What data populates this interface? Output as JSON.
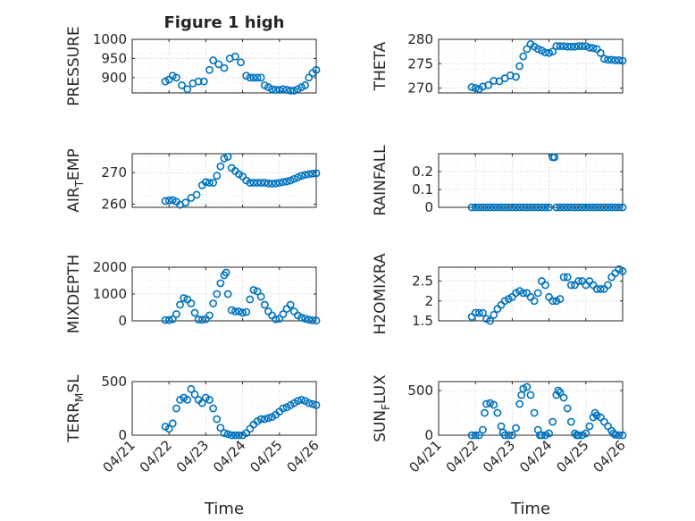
{
  "figure_title": "Figure 1 high",
  "x_label": "Time",
  "x_tick_labels": [
    "04/21",
    "04/22",
    "04/23",
    "04/24",
    "04/25",
    "04/26"
  ],
  "marker_color": "#0072bd",
  "chart_data": [
    {
      "type": "scatter",
      "title": "Figure 1 high",
      "ylabel": "PRESSURE",
      "ylim": [
        860,
        1000
      ],
      "yticks": [
        900,
        950,
        1000
      ],
      "grid": true,
      "x_unit": "day (0 = 04/21 00:00)",
      "series": [
        {
          "x": [
            0.9,
            1.0,
            1.1,
            1.2,
            1.35,
            1.5,
            1.65,
            1.8,
            1.95,
            2.1,
            2.2,
            2.35,
            2.5,
            2.65,
            2.8,
            2.95,
            3.1,
            3.2,
            3.3,
            3.4,
            3.5,
            3.6,
            3.7,
            3.8,
            3.9,
            4.0,
            4.1,
            4.2,
            4.3,
            4.4,
            4.5,
            4.6,
            4.7,
            4.8,
            4.9,
            5.0
          ],
          "y": [
            890,
            895,
            905,
            900,
            880,
            870,
            885,
            890,
            890,
            920,
            945,
            935,
            925,
            950,
            955,
            940,
            905,
            900,
            900,
            900,
            900,
            880,
            875,
            870,
            868,
            868,
            870,
            868,
            866,
            866,
            870,
            875,
            880,
            900,
            912,
            920
          ]
        }
      ]
    },
    {
      "type": "scatter",
      "ylabel": "THETA",
      "ylim": [
        269,
        280
      ],
      "yticks": [
        270,
        275,
        280
      ],
      "grid": true,
      "series": [
        {
          "x": [
            0.9,
            1.0,
            1.1,
            1.2,
            1.35,
            1.5,
            1.65,
            1.8,
            1.95,
            2.1,
            2.2,
            2.3,
            2.4,
            2.5,
            2.6,
            2.7,
            2.8,
            2.9,
            3.0,
            3.1,
            3.2,
            3.3,
            3.4,
            3.5,
            3.6,
            3.7,
            3.8,
            3.9,
            4.0,
            4.1,
            4.2,
            4.3,
            4.4,
            4.5,
            4.6,
            4.7,
            4.8,
            4.9,
            5.0
          ],
          "y": [
            270.2,
            270.0,
            269.8,
            270.3,
            270.6,
            271.5,
            271.4,
            272.0,
            272.6,
            272.3,
            274.5,
            276.5,
            278.0,
            279.0,
            278.5,
            278.0,
            277.7,
            277.3,
            277.2,
            277.5,
            278.6,
            278.6,
            278.6,
            278.5,
            278.5,
            278.5,
            278.6,
            278.6,
            278.6,
            278.3,
            278.2,
            278.0,
            277.2,
            276.0,
            275.8,
            275.8,
            275.7,
            275.7,
            275.6
          ]
        }
      ]
    },
    {
      "type": "scatter",
      "ylabel": "AIR_TEMP",
      "ylabel_main": "AIR",
      "ylabel_sub": "T",
      "ylabel_tail": "EMP",
      "ylim": [
        259,
        276
      ],
      "yticks": [
        260,
        270
      ],
      "grid": true,
      "series": [
        {
          "x": [
            0.9,
            1.0,
            1.1,
            1.2,
            1.3,
            1.45,
            1.6,
            1.75,
            1.9,
            2.0,
            2.1,
            2.2,
            2.3,
            2.4,
            2.5,
            2.6,
            2.7,
            2.8,
            2.9,
            3.0,
            3.1,
            3.2,
            3.3,
            3.4,
            3.5,
            3.6,
            3.7,
            3.8,
            3.9,
            4.0,
            4.1,
            4.2,
            4.3,
            4.4,
            4.5,
            4.6,
            4.7,
            4.8,
            4.9,
            5.0
          ],
          "y": [
            261.0,
            261.2,
            261.3,
            260.8,
            259.8,
            260.5,
            262.0,
            263.0,
            266.0,
            267.0,
            266.8,
            266.8,
            269.0,
            272.0,
            274.5,
            275.0,
            271.5,
            270.5,
            269.5,
            268.8,
            267.5,
            266.8,
            266.8,
            266.8,
            266.8,
            266.8,
            266.6,
            266.5,
            266.6,
            266.8,
            267.0,
            267.2,
            267.5,
            268.0,
            268.5,
            269.0,
            269.3,
            269.5,
            269.7,
            269.8
          ]
        }
      ]
    },
    {
      "type": "scatter",
      "ylabel": "RAINFALL",
      "ylim": [
        0,
        0.3
      ],
      "yticks": [
        0,
        0.1,
        0.2
      ],
      "grid": true,
      "series": [
        {
          "x": [
            0.9,
            1.0,
            1.1,
            1.2,
            1.3,
            1.4,
            1.5,
            1.6,
            1.7,
            1.8,
            1.9,
            2.0,
            2.1,
            2.2,
            2.3,
            2.4,
            2.5,
            2.6,
            2.7,
            2.8,
            2.9,
            3.0,
            3.1,
            3.15,
            3.2,
            3.3,
            3.4,
            3.5,
            3.6,
            3.7,
            3.8,
            3.9,
            4.0,
            4.1,
            4.2,
            4.3,
            4.4,
            4.5,
            4.6,
            4.7,
            4.8,
            4.9,
            5.0
          ],
          "y": [
            0,
            0,
            0,
            0,
            0,
            0,
            0,
            0,
            0,
            0,
            0,
            0,
            0,
            0,
            0,
            0,
            0,
            0,
            0,
            0,
            0,
            0,
            0.28,
            0.28,
            0,
            0,
            0,
            0,
            0,
            0,
            0,
            0,
            0,
            0,
            0,
            0,
            0,
            0,
            0,
            0,
            0,
            0,
            0
          ]
        }
      ]
    },
    {
      "type": "scatter",
      "ylabel": "MIXDEPTH",
      "ylim": [
        0,
        2000
      ],
      "yticks": [
        0,
        1000,
        2000
      ],
      "grid": true,
      "series": [
        {
          "x": [
            0.9,
            1.0,
            1.1,
            1.2,
            1.3,
            1.4,
            1.5,
            1.6,
            1.7,
            1.8,
            1.9,
            2.0,
            2.1,
            2.2,
            2.3,
            2.4,
            2.5,
            2.55,
            2.6,
            2.7,
            2.8,
            2.9,
            3.0,
            3.1,
            3.2,
            3.3,
            3.4,
            3.5,
            3.6,
            3.7,
            3.8,
            3.9,
            4.0,
            4.1,
            4.2,
            4.3,
            4.4,
            4.5,
            4.6,
            4.7,
            4.8,
            4.9,
            5.0
          ],
          "y": [
            30,
            30,
            60,
            250,
            600,
            850,
            800,
            650,
            300,
            50,
            40,
            60,
            200,
            650,
            1000,
            1400,
            1700,
            1800,
            1000,
            400,
            350,
            350,
            300,
            330,
            800,
            1150,
            1100,
            900,
            600,
            350,
            200,
            60,
            80,
            250,
            450,
            600,
            350,
            200,
            120,
            80,
            40,
            20,
            10
          ]
        }
      ]
    },
    {
      "type": "scatter",
      "ylabel": "H2OMIXRA",
      "ylim": [
        1.5,
        2.85
      ],
      "yticks": [
        1.5,
        2,
        2.5
      ],
      "grid": true,
      "series": [
        {
          "x": [
            0.9,
            1.0,
            1.1,
            1.2,
            1.3,
            1.4,
            1.5,
            1.6,
            1.7,
            1.8,
            1.9,
            2.0,
            2.1,
            2.2,
            2.3,
            2.4,
            2.5,
            2.6,
            2.7,
            2.8,
            2.9,
            3.0,
            3.1,
            3.2,
            3.3,
            3.4,
            3.5,
            3.6,
            3.7,
            3.8,
            3.9,
            4.0,
            4.1,
            4.2,
            4.3,
            4.4,
            4.5,
            4.6,
            4.7,
            4.8,
            4.9,
            5.0
          ],
          "y": [
            1.6,
            1.7,
            1.7,
            1.7,
            1.55,
            1.5,
            1.65,
            1.8,
            1.9,
            2.0,
            2.05,
            2.1,
            2.2,
            2.25,
            2.2,
            2.2,
            2.1,
            2.0,
            2.2,
            2.5,
            2.4,
            2.1,
            2.0,
            2.0,
            2.05,
            2.6,
            2.6,
            2.4,
            2.4,
            2.5,
            2.5,
            2.4,
            2.5,
            2.4,
            2.3,
            2.3,
            2.3,
            2.4,
            2.6,
            2.7,
            2.8,
            2.75
          ]
        }
      ]
    },
    {
      "type": "scatter",
      "ylabel": "TERR_MSL",
      "ylabel_main": "TERR",
      "ylabel_sub": "M",
      "ylabel_tail": "SL",
      "ylim": [
        0,
        500
      ],
      "yticks": [
        0,
        500
      ],
      "grid": true,
      "series": [
        {
          "x": [
            0.9,
            1.0,
            1.1,
            1.2,
            1.3,
            1.4,
            1.5,
            1.6,
            1.7,
            1.8,
            1.9,
            2.0,
            2.1,
            2.2,
            2.3,
            2.4,
            2.5,
            2.6,
            2.7,
            2.8,
            2.9,
            3.0,
            3.1,
            3.2,
            3.3,
            3.4,
            3.5,
            3.6,
            3.7,
            3.8,
            3.9,
            4.0,
            4.1,
            4.2,
            4.3,
            4.4,
            4.5,
            4.6,
            4.7,
            4.8,
            4.9,
            5.0
          ],
          "y": [
            80,
            60,
            110,
            250,
            330,
            350,
            330,
            430,
            380,
            330,
            300,
            350,
            330,
            250,
            150,
            70,
            20,
            10,
            0,
            0,
            0,
            0,
            20,
            60,
            100,
            130,
            150,
            150,
            160,
            170,
            190,
            220,
            250,
            260,
            280,
            300,
            320,
            330,
            320,
            300,
            290,
            280
          ]
        }
      ]
    },
    {
      "type": "scatter",
      "ylabel": "SUN_FLUX",
      "ylabel_main": "SUN",
      "ylabel_sub": "F",
      "ylabel_tail": "LUX",
      "ylim": [
        0,
        600
      ],
      "yticks": [
        0,
        500
      ],
      "grid": true,
      "series": [
        {
          "x": [
            0.9,
            1.0,
            1.1,
            1.2,
            1.25,
            1.3,
            1.4,
            1.5,
            1.6,
            1.7,
            1.75,
            1.8,
            1.9,
            2.0,
            2.1,
            2.2,
            2.25,
            2.3,
            2.4,
            2.5,
            2.6,
            2.7,
            2.75,
            2.8,
            2.9,
            3.0,
            3.1,
            3.2,
            3.25,
            3.3,
            3.4,
            3.5,
            3.6,
            3.7,
            3.75,
            3.8,
            3.9,
            4.0,
            4.1,
            4.2,
            4.25,
            4.3,
            4.4,
            4.5,
            4.6,
            4.7,
            4.75,
            4.8,
            4.9,
            5.0
          ],
          "y": [
            0,
            0,
            0,
            60,
            250,
            350,
            360,
            340,
            250,
            100,
            30,
            0,
            0,
            0,
            80,
            350,
            450,
            520,
            540,
            450,
            250,
            60,
            0,
            0,
            0,
            20,
            150,
            450,
            500,
            480,
            420,
            300,
            150,
            20,
            0,
            0,
            0,
            20,
            100,
            200,
            250,
            220,
            200,
            150,
            100,
            50,
            20,
            5,
            0,
            0
          ]
        }
      ]
    }
  ]
}
